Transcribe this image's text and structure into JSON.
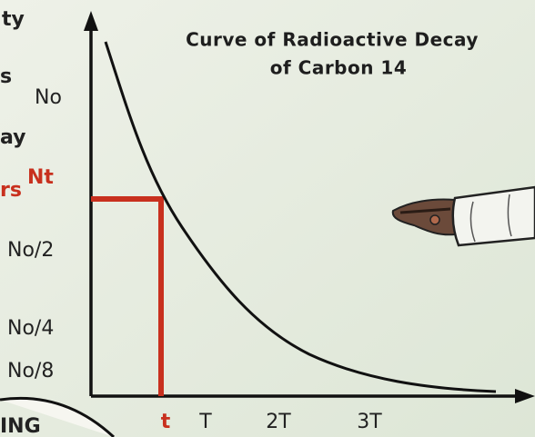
{
  "title": {
    "lines": [
      "Curve of Radioactive Decay",
      "of Carbon 14"
    ]
  },
  "y_labels": [
    "No",
    "Nt",
    "No/2",
    "No/4",
    "No/8"
  ],
  "x_labels": [
    "t",
    "T",
    "2T",
    "3T"
  ],
  "margin_fragments": [
    "ty",
    "s",
    "ay",
    "rs",
    "ING"
  ]
}
